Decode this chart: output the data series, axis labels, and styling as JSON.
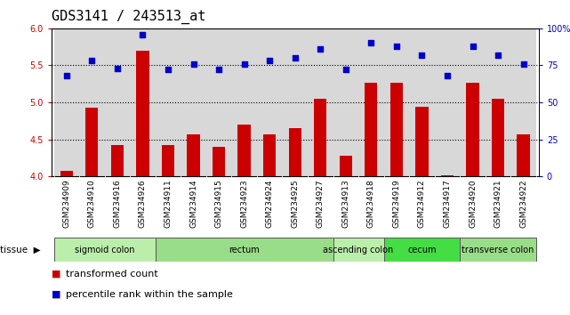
{
  "title": "GDS3141 / 243513_at",
  "samples": [
    "GSM234909",
    "GSM234910",
    "GSM234916",
    "GSM234926",
    "GSM234911",
    "GSM234914",
    "GSM234915",
    "GSM234923",
    "GSM234924",
    "GSM234925",
    "GSM234927",
    "GSM234913",
    "GSM234918",
    "GSM234919",
    "GSM234912",
    "GSM234917",
    "GSM234920",
    "GSM234921",
    "GSM234922"
  ],
  "bar_values": [
    4.07,
    4.93,
    4.42,
    5.7,
    4.42,
    4.57,
    4.4,
    4.7,
    4.57,
    4.65,
    5.05,
    4.28,
    5.27,
    5.27,
    4.94,
    4.02,
    5.27,
    5.05,
    4.57
  ],
  "dot_values": [
    68,
    78,
    73,
    96,
    72,
    76,
    72,
    76,
    78,
    80,
    86,
    72,
    90,
    88,
    82,
    68,
    88,
    82,
    76
  ],
  "bar_color": "#cc0000",
  "dot_color": "#0000cc",
  "ylim_left": [
    4.0,
    6.0
  ],
  "ylim_right": [
    0,
    100
  ],
  "yticks_left": [
    4.0,
    4.5,
    5.0,
    5.5,
    6.0
  ],
  "yticks_right": [
    0,
    25,
    50,
    75,
    100
  ],
  "yticklabels_right": [
    "0",
    "25",
    "50",
    "75",
    "100%"
  ],
  "hlines": [
    4.5,
    5.0,
    5.5
  ],
  "tissue_groups": [
    {
      "label": "sigmoid colon",
      "start": 0,
      "end": 4,
      "color": "#bbeeaa"
    },
    {
      "label": "rectum",
      "start": 4,
      "end": 11,
      "color": "#99dd88"
    },
    {
      "label": "ascending colon",
      "start": 11,
      "end": 13,
      "color": "#bbeeaa"
    },
    {
      "label": "cecum",
      "start": 13,
      "end": 16,
      "color": "#44dd44"
    },
    {
      "label": "transverse colon",
      "start": 16,
      "end": 19,
      "color": "#99dd88"
    }
  ],
  "legend_bar_label": "transformed count",
  "legend_dot_label": "percentile rank within the sample",
  "col_bg": "#d8d8d8",
  "plot_bg": "#ffffff",
  "title_fontsize": 11,
  "tick_fontsize": 7,
  "label_fontsize": 8
}
